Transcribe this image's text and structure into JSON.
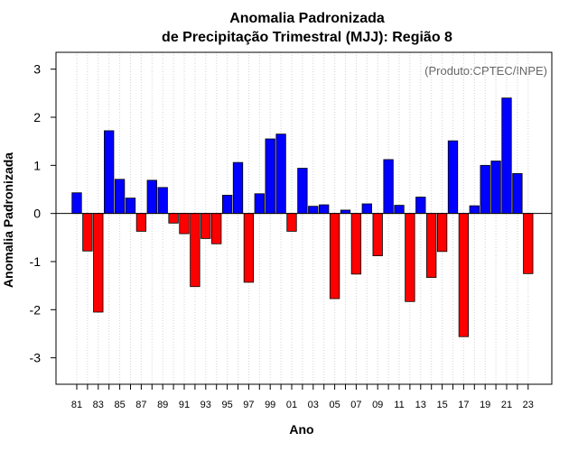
{
  "chart_data": {
    "type": "bar",
    "title": "Anomalia Padronizada",
    "subtitle": "de Precipitação Trimestral (MJJ): Região 8",
    "xlabel": "Ano",
    "ylabel": "Anomalia Padronizada",
    "annotation": "(Produto:CPTEC/INPE)",
    "ylim": [
      -3.55,
      3.35
    ],
    "yticks": [
      -3,
      -2,
      -1,
      0,
      1,
      2,
      3
    ],
    "x_tick_labels": [
      "81",
      "83",
      "85",
      "87",
      "89",
      "91",
      "93",
      "95",
      "97",
      "99",
      "01",
      "03",
      "05",
      "07",
      "09",
      "11",
      "13",
      "15",
      "17",
      "19",
      "21",
      "23"
    ],
    "categories": [
      "1981",
      "1982",
      "1983",
      "1984",
      "1985",
      "1986",
      "1987",
      "1988",
      "1989",
      "1990",
      "1991",
      "1992",
      "1993",
      "1994",
      "1995",
      "1996",
      "1997",
      "1998",
      "1999",
      "2000",
      "2001",
      "2002",
      "2003",
      "2004",
      "2005",
      "2006",
      "2007",
      "2008",
      "2009",
      "2010",
      "2011",
      "2012",
      "2013",
      "2014",
      "2015",
      "2016",
      "2017",
      "2018",
      "2019",
      "2020",
      "2021",
      "2022",
      "2023"
    ],
    "values": [
      0.43,
      -0.78,
      -2.05,
      1.72,
      0.71,
      0.32,
      -0.37,
      0.69,
      0.54,
      -0.2,
      -0.42,
      -1.52,
      -0.52,
      -0.63,
      0.38,
      1.06,
      -1.43,
      0.41,
      1.55,
      1.65,
      -0.37,
      0.94,
      0.15,
      0.18,
      -1.77,
      0.07,
      -1.26,
      0.2,
      -0.88,
      1.12,
      0.17,
      -1.83,
      0.34,
      -1.33,
      -0.79,
      1.51,
      -2.56,
      0.16,
      1.0,
      1.09,
      2.4,
      0.83,
      -1.25
    ],
    "grid": "vertical dotted",
    "colors": {
      "positive": "#0000ff",
      "negative": "#ff0000",
      "outline": "#000000",
      "grid": "#d3d3d3"
    }
  }
}
